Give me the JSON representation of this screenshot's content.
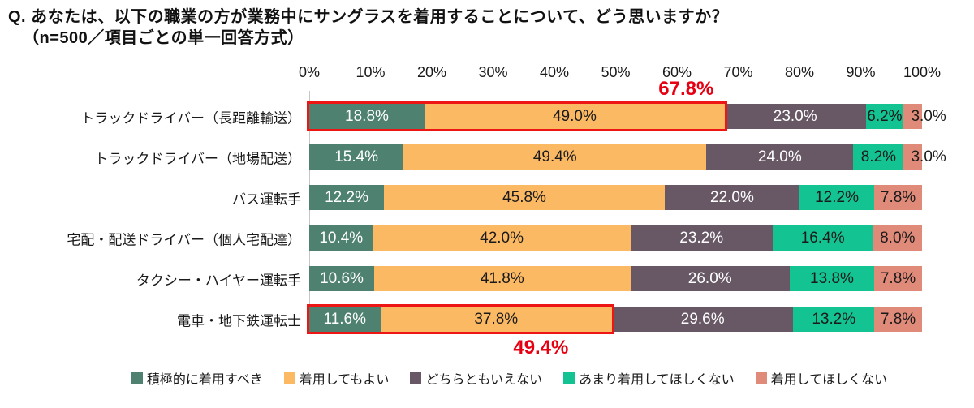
{
  "title": {
    "line1": "Q. あなたは、以下の職業の方が業務中にサングラスを着用することについて、どう思いますか？",
    "line2": "（n=500／項目ごとの単一回答方式）"
  },
  "colors": {
    "annotation_red": "#e60012",
    "highlight_box_red": "#ee1515",
    "axis_line_gray": "#c6c6c6",
    "text_black": "#1a1a1a"
  },
  "chart_data": {
    "type": "bar",
    "stacked": true,
    "orientation": "horizontal",
    "xlim": [
      0,
      100
    ],
    "x_ticks": [
      "0%",
      "10%",
      "20%",
      "30%",
      "40%",
      "50%",
      "60%",
      "70%",
      "80%",
      "90%",
      "100%"
    ],
    "categories": [
      "トラックドライバー（長距離輸送）",
      "トラックドライバー（地場配送）",
      "バス運転手",
      "宅配・配送ドライバー（個人宅配達）",
      "タクシー・ハイヤー運転手",
      "電車・地下鉄運転士"
    ],
    "series": [
      {
        "name": "積極的に着用すべき",
        "color": "#4e8170",
        "text_color": "#ffffff",
        "values": [
          18.8,
          15.4,
          12.2,
          10.4,
          10.6,
          11.6
        ]
      },
      {
        "name": "着用してもよい",
        "color": "#fbb964",
        "text_color": "#1a1a1a",
        "values": [
          49.0,
          49.4,
          45.8,
          42.0,
          41.8,
          37.8
        ]
      },
      {
        "name": "どちらともいえない",
        "color": "#685866",
        "text_color": "#ffffff",
        "values": [
          23.0,
          24.0,
          22.0,
          23.2,
          26.0,
          29.6
        ]
      },
      {
        "name": "あまり着用してほしくない",
        "color": "#13c392",
        "text_color": "#1a1a1a",
        "values": [
          6.2,
          8.2,
          12.2,
          16.4,
          13.8,
          13.2
        ]
      },
      {
        "name": "着用してほしくない",
        "color": "#e08a79",
        "text_color": "#1a1a1a",
        "values": [
          3.0,
          3.0,
          7.8,
          8.0,
          7.8,
          7.8
        ]
      }
    ],
    "value_label_suffix": "%",
    "annotations": [
      {
        "row": 0,
        "span_pct": 67.8,
        "label": "67.8%",
        "label_position": "above",
        "label_center_pct": 61.5
      },
      {
        "row": 5,
        "span_pct": 49.4,
        "label": "49.4%",
        "label_position": "below",
        "label_center_pct": 37.8
      }
    ],
    "legend_position": "bottom"
  }
}
